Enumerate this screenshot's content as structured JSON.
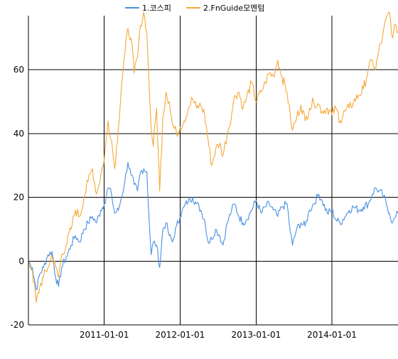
{
  "chart_data": {
    "type": "line",
    "title": "",
    "xlabel": "",
    "ylabel": "",
    "x_range": [
      "2010-01-01",
      "2014-11-15"
    ],
    "ylim": [
      -20,
      77
    ],
    "y_ticks": [
      -20,
      0,
      20,
      40,
      60
    ],
    "x_ticks": [
      "2011-01-01",
      "2012-01-01",
      "2013-01-01",
      "2014-01-01"
    ],
    "grid": true,
    "legend_position": "top",
    "series": [
      {
        "name": "1.코스피",
        "color": "#4a90e2",
        "points": [
          [
            "2010-01-01",
            0
          ],
          [
            "2010-01-20",
            -2
          ],
          [
            "2010-02-08",
            -9
          ],
          [
            "2010-02-25",
            -4
          ],
          [
            "2010-03-15",
            -2
          ],
          [
            "2010-04-05",
            2
          ],
          [
            "2010-04-25",
            3
          ],
          [
            "2010-05-12",
            -5
          ],
          [
            "2010-05-26",
            -8
          ],
          [
            "2010-06-10",
            -2
          ],
          [
            "2010-07-01",
            1
          ],
          [
            "2010-07-25",
            5
          ],
          [
            "2010-08-15",
            8
          ],
          [
            "2010-09-05",
            6
          ],
          [
            "2010-09-25",
            10
          ],
          [
            "2010-10-15",
            12
          ],
          [
            "2010-11-05",
            14
          ],
          [
            "2010-11-25",
            12
          ],
          [
            "2010-12-15",
            16
          ],
          [
            "2011-01-01",
            18
          ],
          [
            "2011-01-20",
            23
          ],
          [
            "2011-02-05",
            21
          ],
          [
            "2011-02-20",
            15
          ],
          [
            "2011-03-10",
            16
          ],
          [
            "2011-03-25",
            20
          ],
          [
            "2011-04-10",
            25
          ],
          [
            "2011-04-25",
            31
          ],
          [
            "2011-05-10",
            27
          ],
          [
            "2011-05-25",
            24
          ],
          [
            "2011-06-10",
            22
          ],
          [
            "2011-06-25",
            28
          ],
          [
            "2011-07-10",
            29
          ],
          [
            "2011-07-25",
            28
          ],
          [
            "2011-08-05",
            13
          ],
          [
            "2011-08-15",
            2
          ],
          [
            "2011-08-25",
            6
          ],
          [
            "2011-09-10",
            5
          ],
          [
            "2011-09-25",
            -2
          ],
          [
            "2011-10-10",
            10
          ],
          [
            "2011-10-25",
            12
          ],
          [
            "2011-11-10",
            8
          ],
          [
            "2011-11-25",
            6
          ],
          [
            "2011-12-15",
            11
          ],
          [
            "2012-01-01",
            14
          ],
          [
            "2012-01-20",
            17
          ],
          [
            "2012-02-10",
            19
          ],
          [
            "2012-03-01",
            20
          ],
          [
            "2012-03-20",
            18
          ],
          [
            "2012-04-10",
            16
          ],
          [
            "2012-04-28",
            13
          ],
          [
            "2012-05-15",
            6
          ],
          [
            "2012-06-01",
            7
          ],
          [
            "2012-06-20",
            10
          ],
          [
            "2012-07-10",
            8
          ],
          [
            "2012-07-25",
            5
          ],
          [
            "2012-08-15",
            12
          ],
          [
            "2012-09-05",
            16
          ],
          [
            "2012-09-20",
            18
          ],
          [
            "2012-10-10",
            14
          ],
          [
            "2012-10-30",
            12
          ],
          [
            "2012-11-15",
            13
          ],
          [
            "2012-12-10",
            16
          ],
          [
            "2013-01-01",
            19
          ],
          [
            "2013-01-25",
            15
          ],
          [
            "2013-02-15",
            17
          ],
          [
            "2013-03-05",
            18
          ],
          [
            "2013-03-25",
            16
          ],
          [
            "2013-04-15",
            14
          ],
          [
            "2013-05-05",
            17
          ],
          [
            "2013-05-30",
            18
          ],
          [
            "2013-06-15",
            9
          ],
          [
            "2013-06-25",
            5
          ],
          [
            "2013-07-15",
            10
          ],
          [
            "2013-08-05",
            12
          ],
          [
            "2013-08-25",
            11
          ],
          [
            "2013-09-15",
            16
          ],
          [
            "2013-10-05",
            18
          ],
          [
            "2013-10-30",
            21
          ],
          [
            "2013-11-15",
            19
          ],
          [
            "2013-12-10",
            15
          ],
          [
            "2014-01-01",
            16
          ],
          [
            "2014-01-20",
            13
          ],
          [
            "2014-02-10",
            12
          ],
          [
            "2014-03-05",
            14
          ],
          [
            "2014-03-25",
            16
          ],
          [
            "2014-04-15",
            17
          ],
          [
            "2014-05-10",
            16
          ],
          [
            "2014-06-01",
            17
          ],
          [
            "2014-06-25",
            18
          ],
          [
            "2014-07-15",
            21
          ],
          [
            "2014-07-30",
            23
          ],
          [
            "2014-08-15",
            22
          ],
          [
            "2014-09-01",
            21
          ],
          [
            "2014-09-20",
            18
          ],
          [
            "2014-10-05",
            15
          ],
          [
            "2014-10-20",
            12
          ],
          [
            "2014-11-05",
            14
          ],
          [
            "2014-11-15",
            15
          ]
        ]
      },
      {
        "name": "2.FnGuide모멘텀",
        "color": "#f5a83a",
        "points": [
          [
            "2010-01-01",
            0
          ],
          [
            "2010-01-20",
            -3
          ],
          [
            "2010-02-08",
            -13
          ],
          [
            "2010-02-25",
            -8
          ],
          [
            "2010-03-15",
            -5
          ],
          [
            "2010-04-05",
            -2
          ],
          [
            "2010-04-25",
            2
          ],
          [
            "2010-05-12",
            -2
          ],
          [
            "2010-05-26",
            -5
          ],
          [
            "2010-06-10",
            2
          ],
          [
            "2010-07-01",
            5
          ],
          [
            "2010-07-25",
            10
          ],
          [
            "2010-08-15",
            16
          ],
          [
            "2010-09-05",
            14
          ],
          [
            "2010-09-25",
            20
          ],
          [
            "2010-10-15",
            25
          ],
          [
            "2010-11-05",
            29
          ],
          [
            "2010-11-25",
            21
          ],
          [
            "2010-12-15",
            27
          ],
          [
            "2011-01-01",
            32
          ],
          [
            "2011-01-20",
            44
          ],
          [
            "2011-02-05",
            38
          ],
          [
            "2011-02-20",
            29
          ],
          [
            "2011-03-10",
            42
          ],
          [
            "2011-03-25",
            55
          ],
          [
            "2011-04-10",
            65
          ],
          [
            "2011-04-25",
            73
          ],
          [
            "2011-05-10",
            70
          ],
          [
            "2011-05-25",
            59
          ],
          [
            "2011-06-10",
            64
          ],
          [
            "2011-06-25",
            74
          ],
          [
            "2011-07-10",
            78
          ],
          [
            "2011-07-25",
            72
          ],
          [
            "2011-08-05",
            55
          ],
          [
            "2011-08-15",
            42
          ],
          [
            "2011-08-25",
            36
          ],
          [
            "2011-09-10",
            48
          ],
          [
            "2011-09-25",
            22
          ],
          [
            "2011-10-10",
            45
          ],
          [
            "2011-10-25",
            53
          ],
          [
            "2011-11-10",
            50
          ],
          [
            "2011-11-25",
            43
          ],
          [
            "2011-12-15",
            40
          ],
          [
            "2012-01-01",
            42
          ],
          [
            "2012-01-20",
            44
          ],
          [
            "2012-02-10",
            48
          ],
          [
            "2012-03-01",
            51
          ],
          [
            "2012-03-20",
            48
          ],
          [
            "2012-04-10",
            49
          ],
          [
            "2012-04-28",
            46
          ],
          [
            "2012-05-15",
            38
          ],
          [
            "2012-06-01",
            30
          ],
          [
            "2012-06-20",
            35
          ],
          [
            "2012-07-10",
            37
          ],
          [
            "2012-07-25",
            33
          ],
          [
            "2012-08-15",
            40
          ],
          [
            "2012-09-05",
            46
          ],
          [
            "2012-09-20",
            52
          ],
          [
            "2012-10-10",
            53
          ],
          [
            "2012-10-30",
            48
          ],
          [
            "2012-11-15",
            51
          ],
          [
            "2012-12-10",
            56
          ],
          [
            "2013-01-01",
            50
          ],
          [
            "2013-01-25",
            53
          ],
          [
            "2013-02-15",
            56
          ],
          [
            "2013-03-05",
            59
          ],
          [
            "2013-03-25",
            58
          ],
          [
            "2013-04-15",
            63
          ],
          [
            "2013-05-05",
            58
          ],
          [
            "2013-05-30",
            53
          ],
          [
            "2013-06-15",
            45
          ],
          [
            "2013-06-25",
            41
          ],
          [
            "2013-07-15",
            45
          ],
          [
            "2013-08-05",
            49
          ],
          [
            "2013-08-25",
            44
          ],
          [
            "2013-09-15",
            48
          ],
          [
            "2013-10-05",
            50
          ],
          [
            "2013-10-30",
            49
          ],
          [
            "2013-11-15",
            47
          ],
          [
            "2013-12-10",
            48
          ],
          [
            "2014-01-01",
            46
          ],
          [
            "2014-01-20",
            48
          ],
          [
            "2014-02-10",
            44
          ],
          [
            "2014-03-05",
            47
          ],
          [
            "2014-03-25",
            48
          ],
          [
            "2014-04-15",
            50
          ],
          [
            "2014-05-10",
            52
          ],
          [
            "2014-06-01",
            54
          ],
          [
            "2014-06-25",
            60
          ],
          [
            "2014-07-15",
            63
          ],
          [
            "2014-07-30",
            60
          ],
          [
            "2014-08-15",
            66
          ],
          [
            "2014-09-01",
            70
          ],
          [
            "2014-09-20",
            76
          ],
          [
            "2014-10-05",
            78
          ],
          [
            "2014-10-20",
            70
          ],
          [
            "2014-11-05",
            74
          ],
          [
            "2014-11-15",
            72
          ]
        ]
      }
    ]
  }
}
